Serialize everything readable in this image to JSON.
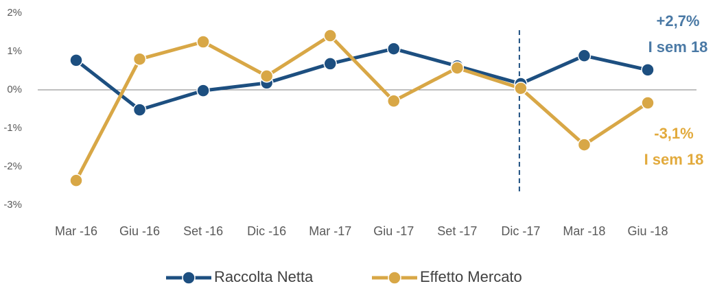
{
  "chart_data": {
    "type": "line",
    "categories": [
      "Mar -16",
      "Giu -16",
      "Set -16",
      "Dic -16",
      "Mar -17",
      "Giu -17",
      "Set -17",
      "Dic -17",
      "Mar -18",
      "Giu -18"
    ],
    "series": [
      {
        "name": "Raccolta Netta",
        "color": "#1d4f80",
        "values": [
          0.77,
          -0.52,
          -0.02,
          0.18,
          0.68,
          1.07,
          0.62,
          0.16,
          0.89,
          0.52
        ]
      },
      {
        "name": "Effetto Mercato",
        "color": "#d8a746",
        "values": [
          -2.36,
          0.8,
          1.25,
          0.36,
          1.41,
          -0.29,
          0.57,
          0.04,
          -1.43,
          -0.34
        ]
      }
    ],
    "ylim": [
      -3,
      2
    ],
    "yticks": [
      {
        "value": -3,
        "label": "-3%"
      },
      {
        "value": -2,
        "label": "-2%"
      },
      {
        "value": -1,
        "label": "-1%"
      },
      {
        "value": 0,
        "label": "0%"
      },
      {
        "value": 1,
        "label": "1%"
      },
      {
        "value": 2,
        "label": "2%"
      }
    ],
    "annotations": [
      {
        "text": "+2,7%",
        "color": "#4a79a5"
      },
      {
        "text": "I sem 18",
        "color": "#4a79a5"
      },
      {
        "text": "-3,1%",
        "color": "#e2aa3c"
      },
      {
        "text": "I sem 18",
        "color": "#e2aa3c"
      }
    ],
    "legend": "bottom"
  }
}
